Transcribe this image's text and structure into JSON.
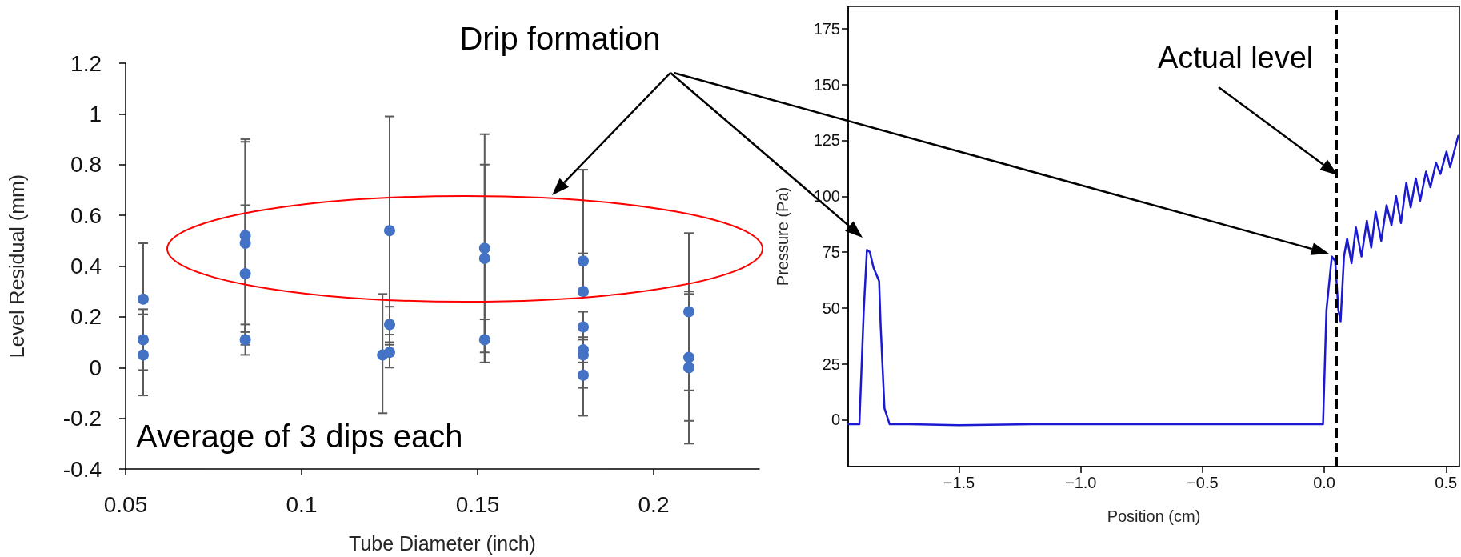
{
  "chart_data": [
    {
      "type": "scatter",
      "xlabel": "Tube Diameter (inch)",
      "ylabel": "Level Residual (mm)",
      "color": "#4472c4",
      "marker": "circle",
      "x": [
        0.055,
        0.055,
        0.055,
        0.084,
        0.084,
        0.084,
        0.084,
        0.123,
        0.125,
        0.125,
        0.125,
        0.152,
        0.152,
        0.152,
        0.18,
        0.18,
        0.18,
        0.18,
        0.18,
        0.18,
        0.21,
        0.21,
        0.21,
        0.21
      ],
      "values": [
        0.27,
        0.11,
        0.05,
        0.52,
        0.49,
        0.37,
        0.11,
        0.05,
        0.54,
        0.17,
        0.06,
        0.47,
        0.43,
        0.11,
        0.42,
        0.3,
        0.16,
        0.07,
        0.05,
        -0.03,
        0.22,
        0.04,
        0,
        0
      ],
      "errors": [
        [
          0.27,
          0.49
        ],
        [
          -0.01,
          0.23
        ],
        [
          -0.11,
          0.21
        ],
        [
          0.14,
          0.9
        ],
        [
          0.09,
          0.89
        ],
        [
          0.1,
          0.64
        ],
        [
          0.05,
          0.17
        ],
        [
          -0.18,
          0.29
        ],
        [
          0.09,
          0.99
        ],
        [
          0.1,
          0.24
        ],
        [
          0,
          0.13
        ],
        [
          0.02,
          0.92
        ],
        [
          0.06,
          0.8
        ],
        [
          0.02,
          0.19
        ],
        [
          0.42,
          0.78
        ],
        [
          0.3,
          0.45
        ],
        [
          0.02,
          0.16
        ],
        [
          -0.08,
          0.22
        ],
        [
          0.02,
          0.11
        ],
        [
          -0.19,
          0.12
        ],
        [
          -0.09,
          0.53
        ],
        [
          -0.21,
          0.29
        ],
        [
          -0.3,
          0.3
        ],
        null
      ],
      "xlim": [
        0.05,
        0.23
      ],
      "xticks": [
        0.05,
        0.1,
        0.15,
        0.2
      ],
      "ylim": [
        -0.4,
        1.2
      ],
      "yticks": [
        -0.4,
        -0.2,
        0,
        0.2,
        0.4,
        0.6,
        0.8,
        1,
        1.2
      ],
      "grid": false,
      "annotations": [
        "Drip formation",
        "Average of 3 dips each"
      ]
    },
    {
      "type": "line",
      "xlabel": "Position (cm)",
      "ylabel": "Pressure (Pa)",
      "color": "#1a1ad0",
      "x": [
        -1.955,
        -1.909,
        -1.891,
        -1.878,
        -1.866,
        -1.851,
        -1.828,
        -1.822,
        -1.806,
        -1.785,
        -1.7,
        -1.5,
        -1.2,
        -1.0,
        -0.7,
        -0.5,
        -0.2,
        -0.005,
        0.009,
        0.031,
        0.045,
        0.058,
        0.067,
        0.081,
        0.094,
        0.112,
        0.13,
        0.153,
        0.175,
        0.193,
        0.211,
        0.234,
        0.256,
        0.276,
        0.295,
        0.315,
        0.337,
        0.355,
        0.376,
        0.394,
        0.418,
        0.436,
        0.459,
        0.477,
        0.502,
        0.517,
        0.55
      ],
      "values": [
        -2,
        -2,
        49,
        76,
        75,
        68,
        62,
        43,
        5,
        -2,
        -2,
        -2.5,
        -2,
        -2,
        -2,
        -2,
        -2,
        -2,
        49,
        73,
        71,
        49,
        44,
        73,
        81,
        70,
        86,
        73,
        89,
        77,
        93,
        80,
        96,
        87,
        100,
        88,
        106,
        95,
        108,
        98,
        111,
        104,
        115,
        110,
        120,
        113,
        127
      ],
      "xlim": [
        -1.955,
        0.555
      ],
      "xticks": [
        {
          "value": -1.5,
          "label": "−1.5"
        },
        {
          "value": -1,
          "label": "−1.0"
        },
        {
          "value": -0.5,
          "label": "−0.5"
        },
        {
          "value": 0,
          "label": "0.0"
        },
        {
          "value": 0.5,
          "label": "0.5"
        }
      ],
      "ylim": [
        -21,
        185
      ],
      "yticks": [
        0,
        25,
        50,
        75,
        100,
        125,
        150,
        175
      ],
      "grid": false,
      "ref_lines": [
        {
          "axis": "x",
          "value": 0.05,
          "label": "Actual level",
          "color": "#000000",
          "line_style": "dashed"
        }
      ]
    }
  ]
}
